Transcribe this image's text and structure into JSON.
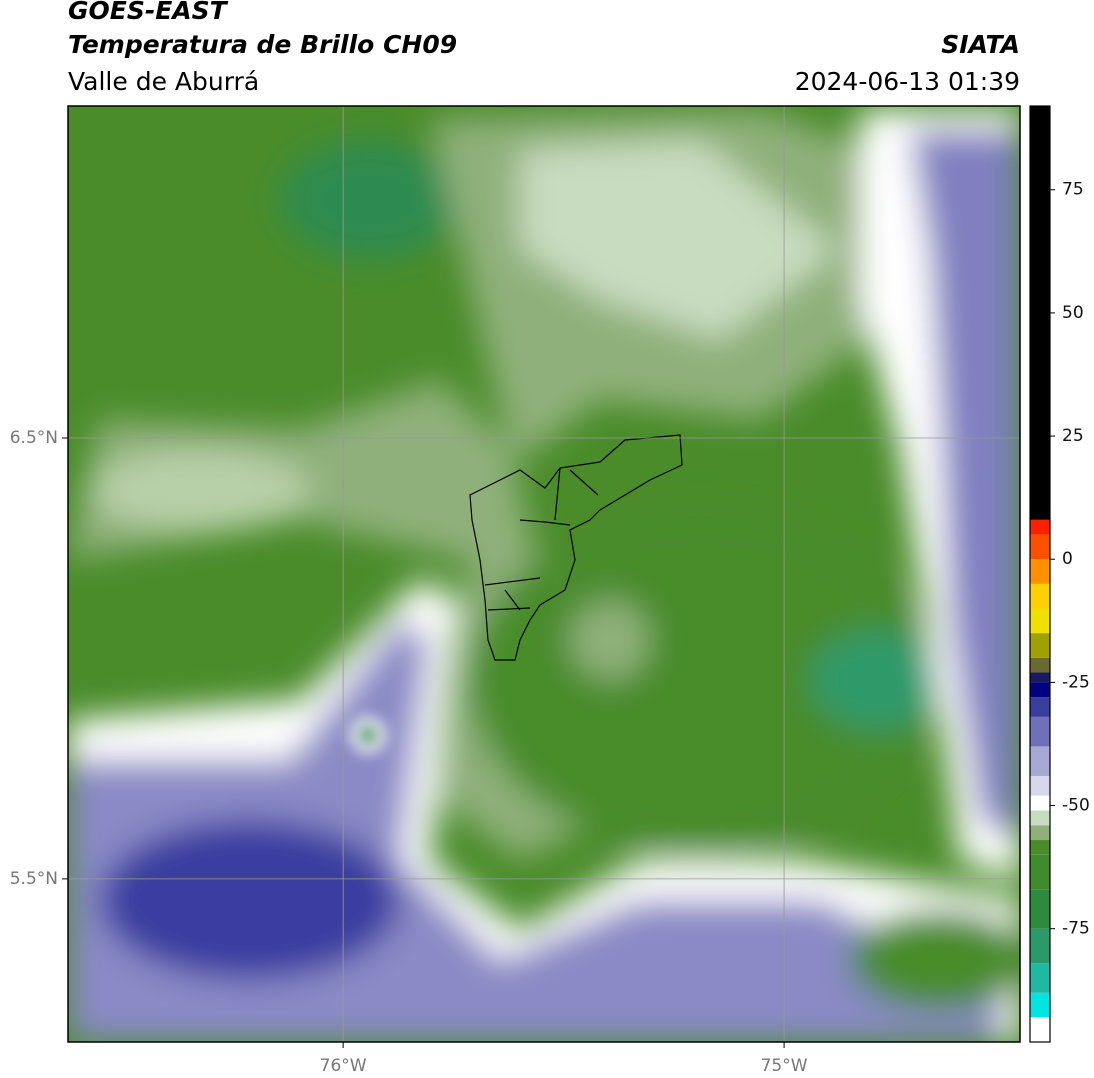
{
  "header": {
    "title": "GOES-EAST",
    "subtitle": "Temperatura de Brillo CH09",
    "region": "Valle de Aburrá",
    "source": "SIATA",
    "datetime": "2024-06-13 01:39"
  },
  "map": {
    "xlim": [
      -76.624,
      -74.465
    ],
    "ylim": [
      5.13,
      7.253
    ],
    "xticks": [
      {
        "value": -76,
        "label": "76°W"
      },
      {
        "value": -75,
        "label": "75°W"
      }
    ],
    "yticks": [
      {
        "value": 6.5,
        "label": "6.5°N"
      },
      {
        "value": 5.5,
        "label": "5.5°N"
      }
    ]
  },
  "colorbar": {
    "lim": [
      -98,
      92
    ],
    "ticks": [
      75,
      50,
      25,
      0,
      -25,
      -50,
      -75
    ],
    "stops": [
      {
        "value": -98,
        "color": "#ffffff"
      },
      {
        "value": -93,
        "color": "#00e5e0"
      },
      {
        "value": -88,
        "color": "#1fb8a0"
      },
      {
        "value": -82,
        "color": "#2a9a6a"
      },
      {
        "value": -75,
        "color": "#2e8b3e"
      },
      {
        "value": -67,
        "color": "#3f8a2a"
      },
      {
        "value": -60,
        "color": "#4a8c2a"
      },
      {
        "value": -57,
        "color": "#8fb07a"
      },
      {
        "value": -54,
        "color": "#c8dcc0"
      },
      {
        "value": -51,
        "color": "#ffffff"
      },
      {
        "value": -48,
        "color": "#d8d8ec"
      },
      {
        "value": -44,
        "color": "#a8a8d4"
      },
      {
        "value": -38,
        "color": "#7070b8"
      },
      {
        "value": -32,
        "color": "#3a3ea0"
      },
      {
        "value": -28,
        "color": "#000080"
      },
      {
        "value": -25,
        "color": "#1a1a60"
      },
      {
        "value": -23,
        "color": "#6a6a30"
      },
      {
        "value": -20,
        "color": "#a0a000"
      },
      {
        "value": -15,
        "color": "#f0e000"
      },
      {
        "value": -10,
        "color": "#ffd000"
      },
      {
        "value": -5,
        "color": "#ff9000"
      },
      {
        "value": 0,
        "color": "#ff5000"
      },
      {
        "value": 5,
        "color": "#ff2000"
      },
      {
        "value": 8,
        "color": "#000000"
      }
    ]
  }
}
